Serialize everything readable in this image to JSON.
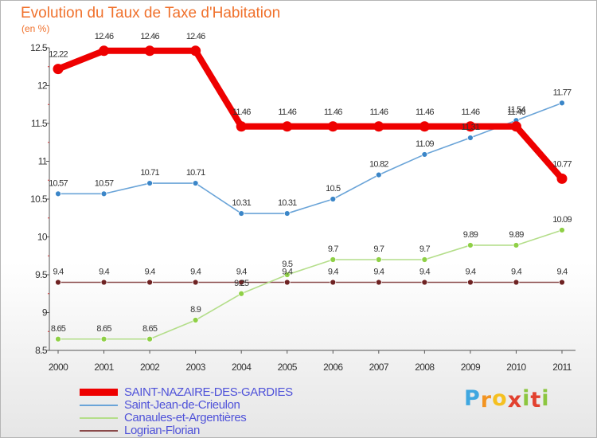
{
  "title": "Evolution du Taux de Taxe d'Habitation",
  "subtitle": "(en %)",
  "logo": {
    "letters": [
      "P",
      "r",
      "o",
      "x",
      "i",
      "t",
      "i"
    ],
    "colors": [
      "#3fa7e0",
      "#f29422",
      "#f5c020",
      "#e2412f",
      "#8cc63f",
      "#e2412f",
      "#8cc63f"
    ]
  },
  "chart_data": {
    "type": "line",
    "title": "Evolution du Taux de Taxe d'Habitation",
    "ylabel": "(en %)",
    "xlabel": "",
    "x": [
      "2000",
      "2001",
      "2002",
      "2003",
      "2004",
      "2005",
      "2006",
      "2007",
      "2008",
      "2009",
      "2010",
      "2011"
    ],
    "ylim": [
      8.5,
      12.5
    ],
    "yticks": [
      "8.5",
      "9",
      "9.5",
      "10",
      "10.5",
      "11",
      "11.5",
      "12",
      "12.5"
    ],
    "grid": false,
    "legend_position": "bottom-left",
    "series": [
      {
        "name": "SAINT-NAZAIRE-DES-GARDIES",
        "color": "#ee0000",
        "values": [
          12.22,
          12.46,
          12.46,
          12.46,
          11.46,
          11.46,
          11.46,
          11.46,
          11.46,
          11.46,
          11.46,
          10.77
        ],
        "labels": [
          "12.22",
          "12.46",
          "12.46",
          "12.46",
          "11.46",
          "11.46",
          "11.46",
          "11.46",
          "11.46",
          "11.46",
          "11.46",
          "10.77"
        ]
      },
      {
        "name": "Saint-Jean-de-Crieulon",
        "color": "#6aa4d8",
        "marker": "#3b86c8",
        "values": [
          10.57,
          10.57,
          10.71,
          10.71,
          10.31,
          10.31,
          10.5,
          10.82,
          11.09,
          11.31,
          11.54,
          11.77
        ],
        "labels": [
          "10.57",
          "10.57",
          "10.71",
          "10.71",
          "10.31",
          "10.31",
          "10.5",
          "10.82",
          "11.09",
          "11.31",
          "11.54",
          "11.77"
        ]
      },
      {
        "name": "Canaules-et-Argentières",
        "color": "#b4de8a",
        "marker": "#8fd046",
        "values": [
          8.65,
          8.65,
          8.65,
          8.9,
          9.25,
          9.5,
          9.7,
          9.7,
          9.7,
          9.89,
          9.89,
          10.09
        ],
        "labels": [
          "8.65",
          "8.65",
          "8.65",
          "8.9",
          "9.25",
          "9.5",
          "9.7",
          "9.7",
          "9.7",
          "9.89",
          "9.89",
          "10.09"
        ]
      },
      {
        "name": "Logrian-Florian",
        "color": "#8a4a4a",
        "marker": "#6e2222",
        "values": [
          9.4,
          9.4,
          9.4,
          9.4,
          9.4,
          9.4,
          9.4,
          9.4,
          9.4,
          9.4,
          9.4,
          9.4
        ],
        "labels": [
          "9.4",
          "9.4",
          "9.4",
          "9.4",
          "9.4",
          "9.4",
          "9.4",
          "9.4",
          "9.4",
          "9.4",
          "9.4",
          "9.4"
        ]
      }
    ]
  }
}
